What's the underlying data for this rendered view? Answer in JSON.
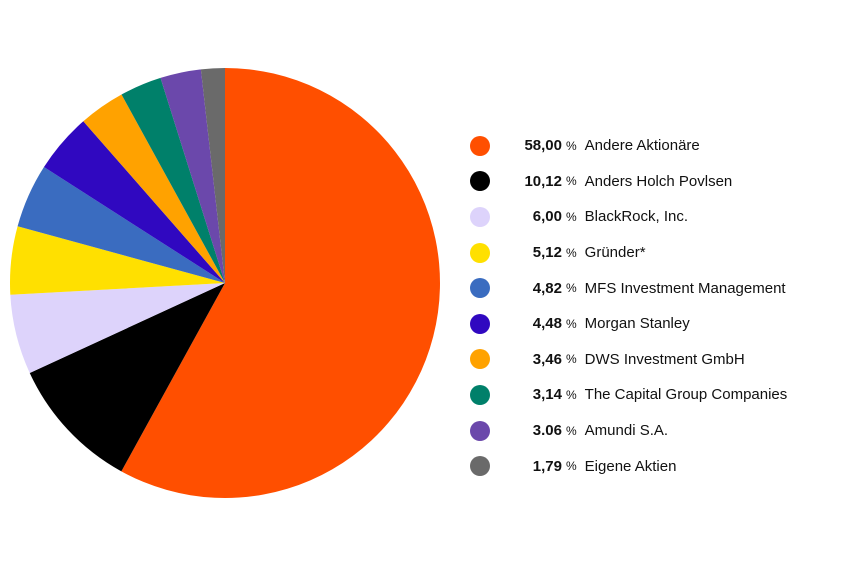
{
  "chart_data": {
    "type": "pie",
    "slices": [
      {
        "label": "Andere Aktionäre",
        "value": 58.0,
        "display": "58,00",
        "color": "#ff4f00"
      },
      {
        "label": "Anders Holch Povlsen",
        "value": 10.12,
        "display": "10,12",
        "color": "#000000"
      },
      {
        "label": "BlackRock, Inc.",
        "value": 6.0,
        "display": "6,00",
        "color": "#ddd3fb"
      },
      {
        "label": "Gründer*",
        "value": 5.12,
        "display": "5,12",
        "color": "#ffe000"
      },
      {
        "label": "MFS Investment Management",
        "value": 4.82,
        "display": "4,82",
        "color": "#3a6cc0"
      },
      {
        "label": "Morgan Stanley",
        "value": 4.48,
        "display": "4,48",
        "color": "#3008c0"
      },
      {
        "label": "DWS Investment GmbH",
        "value": 3.46,
        "display": "3,46",
        "color": "#ffa200"
      },
      {
        "label": "The Capital Group Companies",
        "value": 3.14,
        "display": "3,14",
        "color": "#00806a"
      },
      {
        "label": "Amundi S.A.",
        "value": 3.06,
        "display": "3.06",
        "color": "#6b48ab"
      },
      {
        "label": "Eigene Aktien",
        "value": 1.79,
        "display": "1,79",
        "color": "#6a6a6a"
      }
    ],
    "percent_sign": "%",
    "legend_position": "right"
  }
}
